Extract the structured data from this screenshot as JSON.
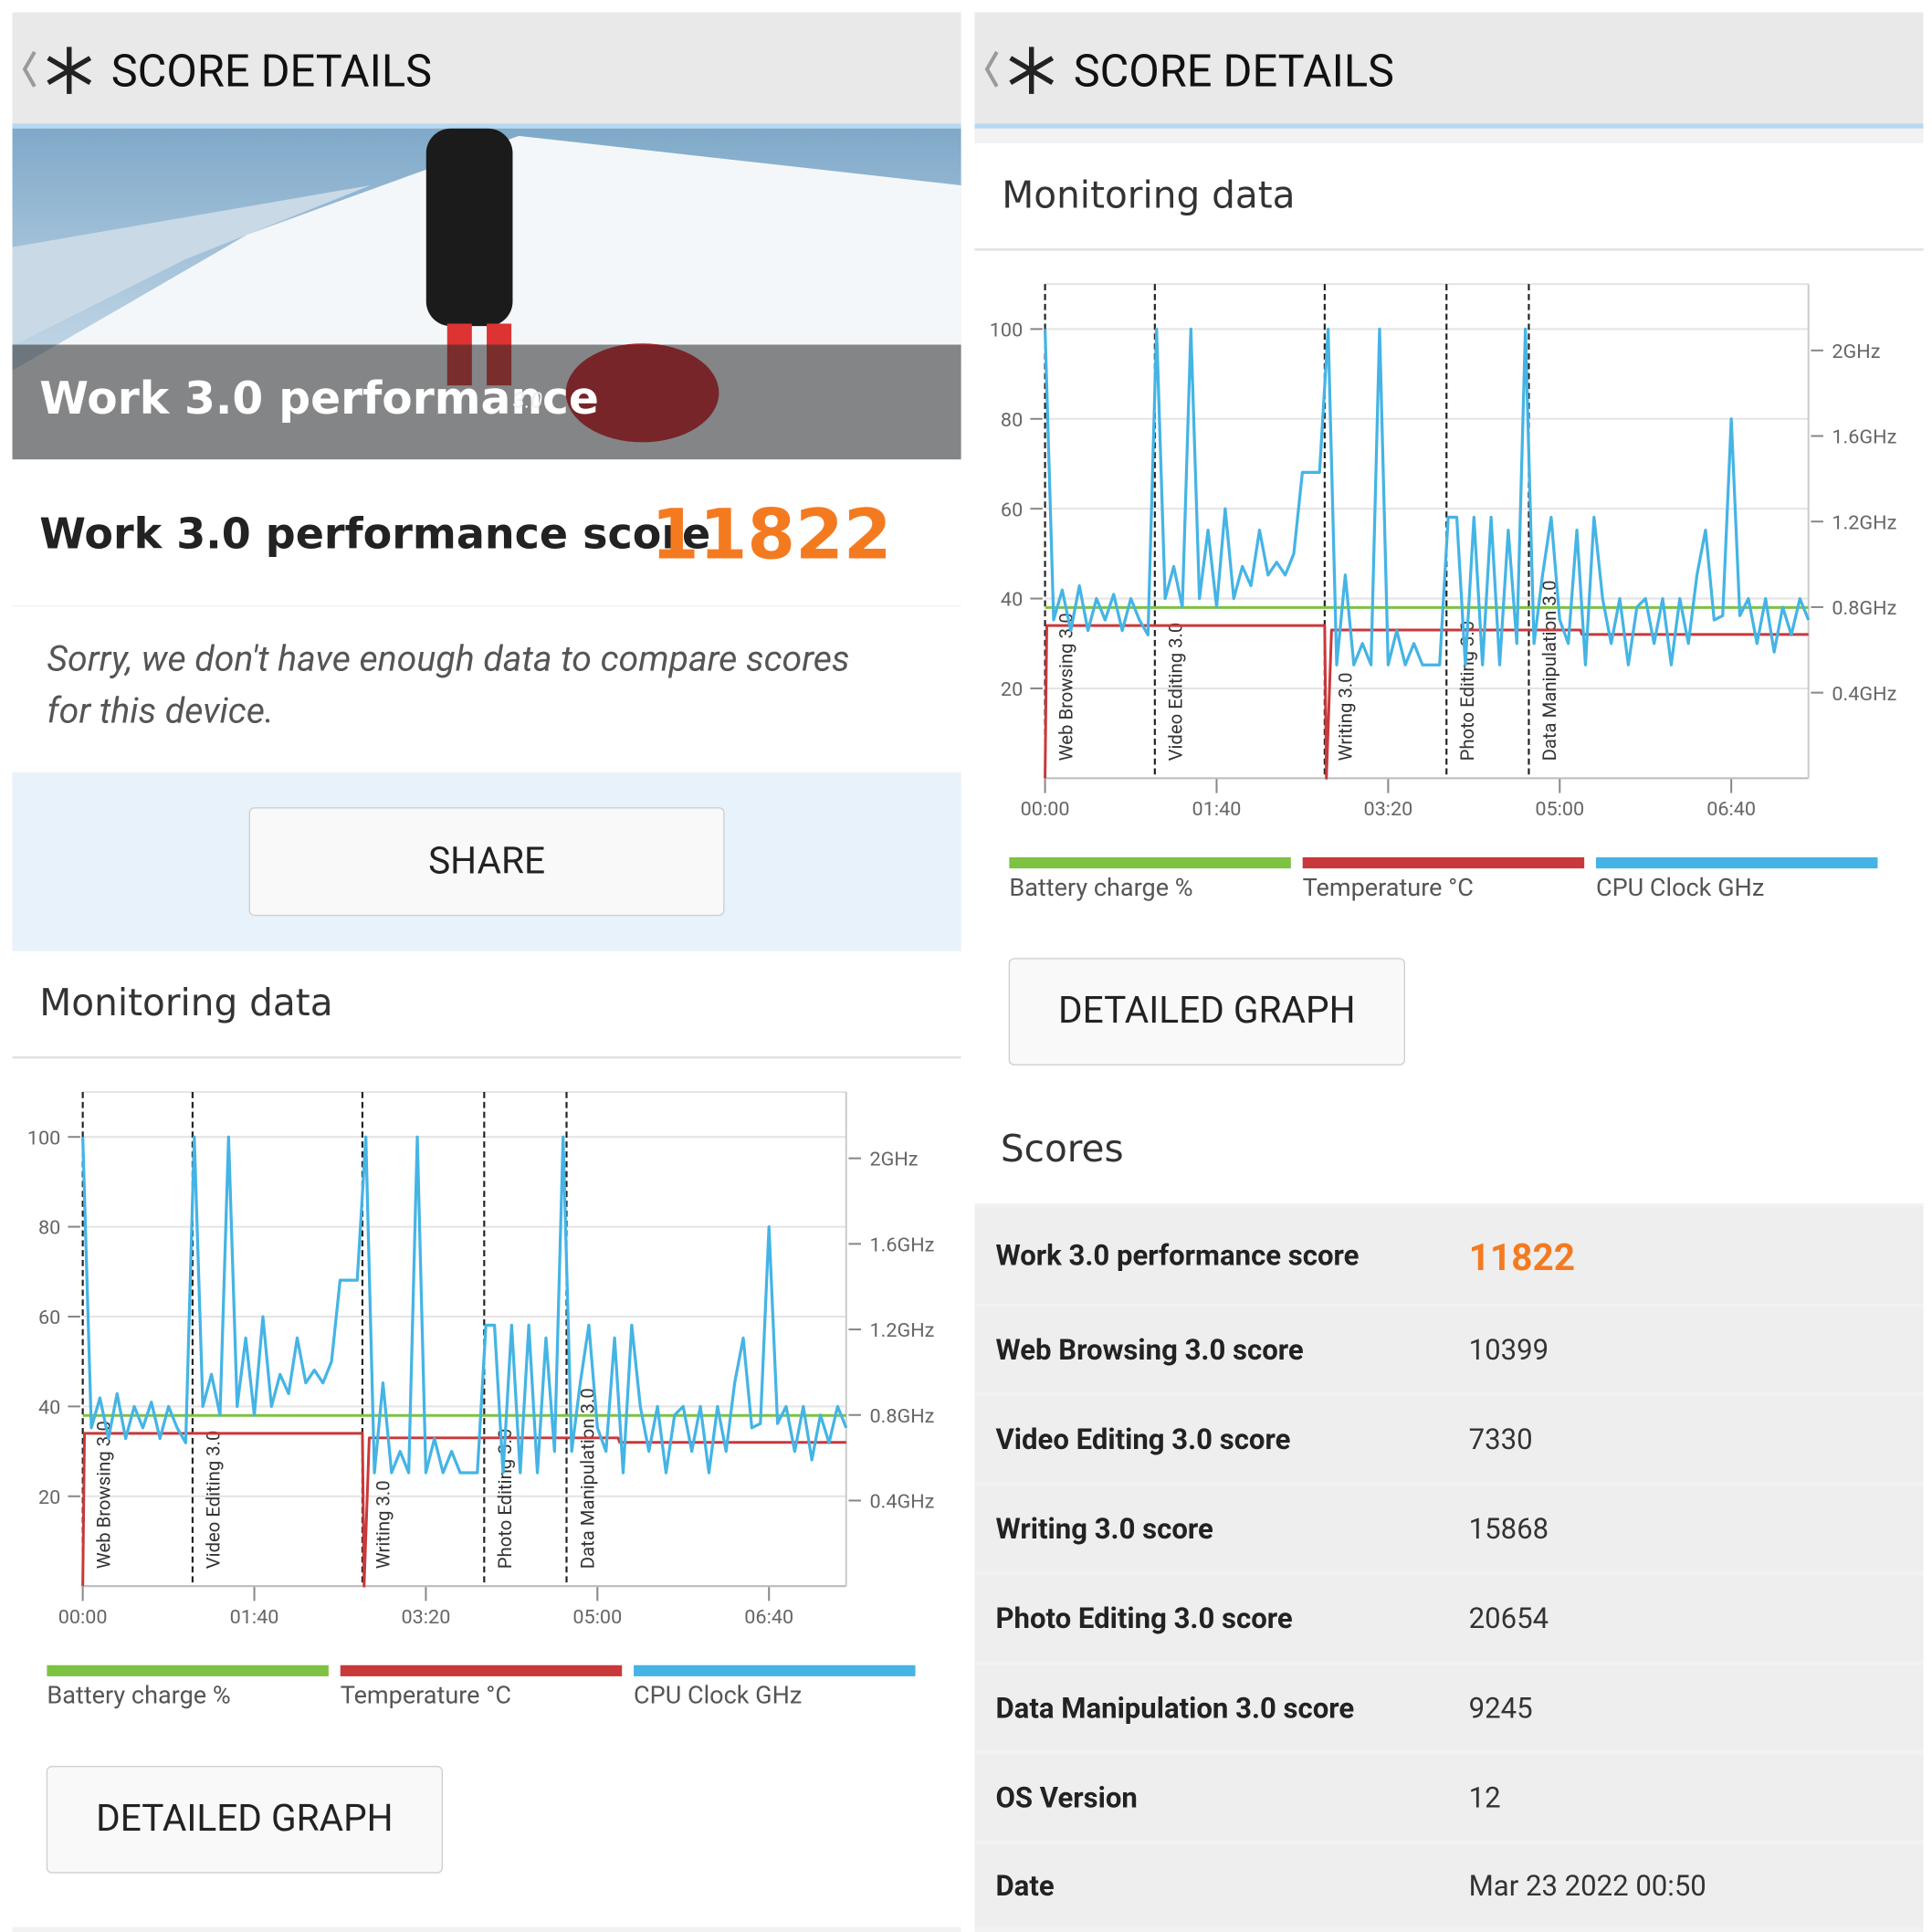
{
  "header": {
    "title": "SCORE DETAILS"
  },
  "hero": {
    "title": "Work 3.0 performance",
    "version": "3.0"
  },
  "score": {
    "label": "Work 3.0 performance score",
    "value": "11822"
  },
  "notice": [
    "Sorry, we don't have enough data to compare scores",
    "for this device."
  ],
  "share": "SHARE",
  "monitoring": {
    "title": "Monitoring data",
    "button": "DETAILED GRAPH"
  },
  "chart_data": {
    "type": "line",
    "xlim": [
      0,
      445
    ],
    "xticks": [
      {
        "value": 0,
        "label": "00:00"
      },
      {
        "value": 100,
        "label": "01:40"
      },
      {
        "value": 200,
        "label": "03:20"
      },
      {
        "value": 300,
        "label": "05:00"
      },
      {
        "value": 400,
        "label": "06:40"
      }
    ],
    "ylim": [
      0,
      110
    ],
    "yticks": [
      20,
      40,
      60,
      80,
      100
    ],
    "y2lim": [
      0,
      2.31
    ],
    "y2ticks": [
      {
        "value": 0.4,
        "label": "0.4GHz"
      },
      {
        "value": 0.8,
        "label": "0.8GHz"
      },
      {
        "value": 1.2,
        "label": "1.2GHz"
      },
      {
        "value": 1.6,
        "label": "1.6GHz"
      },
      {
        "value": 2,
        "label": "2GHz"
      }
    ],
    "annotations": [
      {
        "x": 0,
        "label": "Web Browsing 3.0"
      },
      {
        "x": 64,
        "label": "Video Editing 3.0"
      },
      {
        "x": 163,
        "label": "Writing 3.0"
      },
      {
        "x": 234,
        "label": "Photo Editing 3.0"
      },
      {
        "x": 282,
        "label": "Data Manipulation 3.0"
      }
    ],
    "series": [
      {
        "name": "Battery charge %",
        "color": "#7dc242",
        "x": [
          0,
          445
        ],
        "values": [
          38,
          38
        ]
      },
      {
        "name": "Temperature °C",
        "color": "#c9383a",
        "x": [
          0,
          1,
          163,
          164,
          167,
          312,
          313,
          445
        ],
        "values": [
          0,
          34,
          34,
          0,
          33,
          33,
          32,
          32
        ]
      },
      {
        "name": "CPU Clock GHz",
        "color": "#45b4e5",
        "axis": "y2",
        "x": [
          0,
          5,
          10,
          15,
          20,
          25,
          30,
          35,
          40,
          45,
          50,
          55,
          60,
          65,
          70,
          75,
          80,
          85,
          90,
          95,
          100,
          105,
          110,
          115,
          120,
          125,
          130,
          135,
          140,
          145,
          150,
          155,
          160,
          165,
          170,
          175,
          180,
          185,
          190,
          195,
          200,
          205,
          210,
          215,
          220,
          225,
          230,
          235,
          240,
          245,
          250,
          255,
          260,
          265,
          270,
          275,
          280,
          285,
          290,
          295,
          300,
          305,
          310,
          315,
          320,
          325,
          330,
          335,
          340,
          345,
          350,
          355,
          360,
          365,
          370,
          375,
          380,
          385,
          390,
          395,
          400,
          405,
          410,
          415,
          420,
          425,
          430,
          435,
          440,
          445
        ],
        "values": [
          2.1,
          0.74,
          0.88,
          0.69,
          0.9,
          0.69,
          0.84,
          0.74,
          0.86,
          0.69,
          0.84,
          0.74,
          0.67,
          2.1,
          0.84,
          0.99,
          0.8,
          2.1,
          0.84,
          1.16,
          0.8,
          1.26,
          0.84,
          0.99,
          0.9,
          1.16,
          0.95,
          1.01,
          0.95,
          1.05,
          1.43,
          1.43,
          1.43,
          2.1,
          0.53,
          0.95,
          0.53,
          0.63,
          0.53,
          2.1,
          0.53,
          0.69,
          0.53,
          0.63,
          0.53,
          0.53,
          0.53,
          1.22,
          1.22,
          0.53,
          1.22,
          0.53,
          1.22,
          0.53,
          1.16,
          0.63,
          2.1,
          0.63,
          0.95,
          1.22,
          0.74,
          0.63,
          1.16,
          0.53,
          1.22,
          0.84,
          0.63,
          0.84,
          0.53,
          0.8,
          0.84,
          0.63,
          0.84,
          0.53,
          0.84,
          0.63,
          0.95,
          1.16,
          0.74,
          0.76,
          1.68,
          0.76,
          0.84,
          0.63,
          0.84,
          0.59,
          0.8,
          0.67,
          0.84,
          0.74
        ]
      }
    ]
  },
  "scores": {
    "title": "Scores",
    "rows": [
      [
        "Work 3.0 performance score",
        "11822"
      ],
      [
        "Web Browsing 3.0 score",
        "10399"
      ],
      [
        "Video Editing 3.0 score",
        "7330"
      ],
      [
        "Writing 3.0 score",
        "15868"
      ],
      [
        "Photo Editing 3.0 score",
        "20654"
      ],
      [
        "Data Manipulation 3.0 score",
        "9245"
      ],
      [
        "OS Version",
        "12"
      ],
      [
        "Date",
        "Mar 23 2022 00:50"
      ]
    ]
  }
}
